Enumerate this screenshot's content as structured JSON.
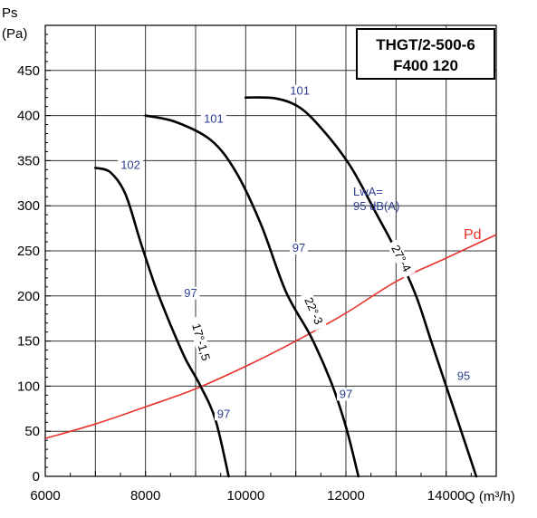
{
  "chart_data": {
    "type": "line",
    "title_lines": [
      "THGT/2-500-6",
      "F400 120"
    ],
    "ylabel_line1": "Ps",
    "ylabel_line2": "(Pa)",
    "xlabel": "Q (m³/h)",
    "xlim": [
      6000,
      15000
    ],
    "ylim": [
      0,
      500
    ],
    "xticks": [
      "6000",
      "8000",
      "10000",
      "12000",
      "14000"
    ],
    "xtick_values": [
      6000,
      8000,
      10000,
      12000,
      14000
    ],
    "yticks": [
      "0",
      "50",
      "100",
      "150",
      "200",
      "250",
      "300",
      "350",
      "400",
      "450"
    ],
    "ytick_values": [
      0,
      50,
      100,
      150,
      200,
      250,
      300,
      350,
      400,
      450
    ],
    "grid": true,
    "series": [
      {
        "name": "17°-1,5",
        "points": [
          [
            7000,
            342
          ],
          [
            7300,
            337
          ],
          [
            7600,
            313
          ],
          [
            7900,
            260
          ],
          [
            8200,
            210
          ],
          [
            8500,
            168
          ],
          [
            8800,
            130
          ],
          [
            9100,
            100
          ],
          [
            9400,
            62
          ],
          [
            9660,
            0
          ]
        ],
        "lwa_labels": [
          {
            "text": "102",
            "x": 7700,
            "y": 342
          },
          {
            "text": "97",
            "x": 8900,
            "y": 200
          },
          {
            "text": "97",
            "x": 9560,
            "y": 66
          }
        ]
      },
      {
        "name": "22°-3",
        "points": [
          [
            8000,
            400
          ],
          [
            8600,
            393
          ],
          [
            9300,
            373
          ],
          [
            9800,
            338
          ],
          [
            10300,
            280
          ],
          [
            10800,
            205
          ],
          [
            11300,
            155
          ],
          [
            11700,
            105
          ],
          [
            12000,
            55
          ],
          [
            12250,
            0
          ]
        ],
        "lwa_labels": [
          {
            "text": "101",
            "x": 9360,
            "y": 393
          },
          {
            "text": "97",
            "x": 11060,
            "y": 250
          },
          {
            "text": "97",
            "x": 12000,
            "y": 88
          }
        ]
      },
      {
        "name": "27°-4",
        "points": [
          [
            10000,
            420
          ],
          [
            10600,
            419
          ],
          [
            11100,
            408
          ],
          [
            11600,
            380
          ],
          [
            12100,
            343
          ],
          [
            12600,
            292
          ],
          [
            13000,
            250
          ],
          [
            13400,
            200
          ],
          [
            13700,
            150
          ],
          [
            14000,
            100
          ],
          [
            14350,
            42
          ],
          [
            14600,
            0
          ]
        ],
        "lwa_labels": [
          {
            "text": "101",
            "x": 11080,
            "y": 424
          },
          {
            "text": "95",
            "x": 14350,
            "y": 108
          }
        ]
      }
    ],
    "pd_curve": {
      "name": "Pd",
      "points": [
        [
          6000,
          42
        ],
        [
          7000,
          58
        ],
        [
          8000,
          77
        ],
        [
          9000,
          97
        ],
        [
          10000,
          122
        ],
        [
          11000,
          150
        ],
        [
          12000,
          181
        ],
        [
          13000,
          216
        ],
        [
          14000,
          242
        ],
        [
          15000,
          268
        ]
      ]
    },
    "lwa_note": [
      "LwA=",
      "95 dB(A)"
    ],
    "colors": {
      "curve": "#000000",
      "pd": "#e8322b",
      "lwa_text": "#2d3f8f"
    }
  }
}
